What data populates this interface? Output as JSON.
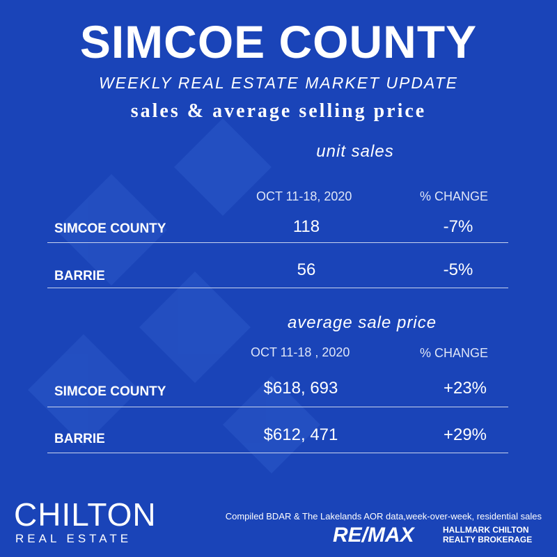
{
  "header": {
    "title": "SIMCOE COUNTY",
    "subtitle": "WEEKLY REAL ESTATE MARKET UPDATE",
    "subheading": "sales & average selling price"
  },
  "unit_sales": {
    "title": "unit sales",
    "columns": [
      "OCT 11-18, 2020",
      "% CHANGE"
    ],
    "rows": [
      [
        "SIMCOE COUNTY",
        "118",
        "-7%"
      ],
      [
        "BARRIE",
        "56",
        "-5%"
      ]
    ]
  },
  "average_price": {
    "title": "average sale price",
    "columns": [
      "OCT 11-18  , 2020",
      "% CHANGE"
    ],
    "rows": [
      [
        "SIMCOE COUNTY",
        "$618, 693",
        "+23%"
      ],
      [
        "BARRIE",
        "$612, 471",
        "+29%"
      ]
    ]
  },
  "footer": {
    "logo": "CHILTON",
    "logo_sub": "REAL ESTATE",
    "note": "Compiled BDAR & The Lakelands AOR data,week-over-week, residential sales",
    "brand": "RE/MAX",
    "brand_sub": "HALLMARK CHILTON\nREALTY BROKERAGE"
  }
}
